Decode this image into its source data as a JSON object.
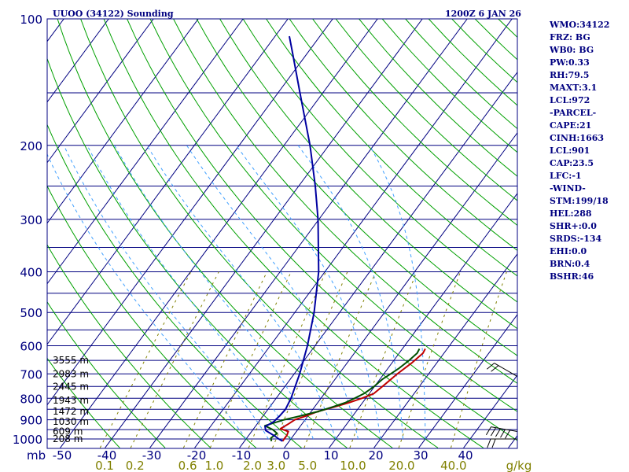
{
  "header": {
    "station": "UUOO (34122) Sounding",
    "time": "1200Z  6 JAN 26"
  },
  "stats": [
    "WMO:34122",
    "FRZ: BG",
    "WB0: BG",
    "PW:0.33",
    "RH:79.5",
    "MAXT:3.1",
    "LCL:972",
    "-PARCEL-",
    "CAPE:21",
    "CINH:1663",
    "LCL:901",
    "CAP:23.5",
    "LFC:-1",
    "-WIND-",
    "STM:199/18",
    "HEL:288",
    "SHR+:0.0",
    "SRDS:-134",
    "EHI:0.0",
    "BRN:0.4",
    "BSHR:46"
  ],
  "colors": {
    "isobar": "#000080",
    "isotherm": "#000080",
    "dry_adiabat": "#00a000",
    "moist_adiabat": "#40a0ff",
    "mixing_ratio": "#808000",
    "temperature": "#c00000",
    "dewpoint": "#005000",
    "parcel": "#0000a0"
  },
  "chart_data": {
    "type": "line",
    "title": "UUOO (34122) Sounding",
    "y_scale": "log",
    "pressure_unit": "mb",
    "mixing_ratio_unit": "g/kg",
    "pressure_ticks": [
      100,
      200,
      300,
      400,
      500,
      600,
      700,
      800,
      900,
      1000
    ],
    "temp_ticks": [
      -50,
      -40,
      -30,
      -20,
      -10,
      0,
      10,
      20,
      30,
      40
    ],
    "mixing_ratio_ticks": [
      "0.1",
      "0.2",
      "0.6",
      "1.0",
      "2.0",
      "3.0",
      "5.0",
      "10.0",
      "20.0",
      "40.0"
    ],
    "height_labels": [
      {
        "p": 650,
        "label": "3555 m"
      },
      {
        "p": 700,
        "label": "2983 m"
      },
      {
        "p": 750,
        "label": "2445 m"
      },
      {
        "p": 810,
        "label": "1943 m"
      },
      {
        "p": 860,
        "label": "1472 m"
      },
      {
        "p": 910,
        "label": "1030 m"
      },
      {
        "p": 960,
        "label": "609 m"
      },
      {
        "p": 1000,
        "label": "208 m"
      }
    ],
    "series": [
      {
        "key": "temperature",
        "points": [
          [
            1012,
            -1.5
          ],
          [
            1000,
            -1.5
          ],
          [
            980,
            -1.5
          ],
          [
            960,
            -1.8
          ],
          [
            945,
            -4.0
          ],
          [
            920,
            -3.0
          ],
          [
            900,
            -2.3
          ],
          [
            880,
            -0.3
          ],
          [
            860,
            1.5
          ],
          [
            840,
            4.2
          ],
          [
            820,
            6.9
          ],
          [
            800,
            9.1
          ],
          [
            780,
            11.0
          ],
          [
            740,
            12.0
          ],
          [
            700,
            13.0
          ],
          [
            660,
            14.4
          ],
          [
            625,
            15.3
          ],
          [
            610,
            15.1
          ]
        ]
      },
      {
        "key": "dewpoint",
        "points": [
          [
            1012,
            -4.0
          ],
          [
            995,
            -4.6
          ],
          [
            970,
            -4.0
          ],
          [
            950,
            -5.6
          ],
          [
            930,
            -8.0
          ],
          [
            900,
            -4.7
          ],
          [
            880,
            -1.5
          ],
          [
            860,
            1.6
          ],
          [
            840,
            3.9
          ],
          [
            820,
            6.1
          ],
          [
            800,
            7.5
          ],
          [
            780,
            8.8
          ],
          [
            750,
            9.9
          ],
          [
            720,
            10.6
          ],
          [
            700,
            11.5
          ],
          [
            680,
            12.4
          ],
          [
            650,
            13.4
          ],
          [
            625,
            14.0
          ],
          [
            610,
            13.8
          ]
        ]
      },
      {
        "key": "parcel",
        "points": [
          [
            1012,
            -1.5
          ],
          [
            1000,
            -2.7
          ],
          [
            985,
            -4.0
          ],
          [
            970,
            -5.5
          ],
          [
            955,
            -7.0
          ],
          [
            935,
            -7.8
          ],
          [
            910,
            -6.7
          ],
          [
            880,
            -6.3
          ],
          [
            850,
            -6.1
          ],
          [
            800,
            -6.7
          ],
          [
            700,
            -8.8
          ],
          [
            600,
            -11.7
          ],
          [
            500,
            -15.7
          ],
          [
            400,
            -21.4
          ],
          [
            300,
            -30.2
          ],
          [
            250,
            -36.3
          ],
          [
            200,
            -44.2
          ],
          [
            150,
            -55.1
          ],
          [
            120,
            -63.5
          ],
          [
            110,
            -66.8
          ]
        ]
      }
    ],
    "wind_barbs": [
      {
        "p": 710,
        "dir": 300,
        "spd": 20
      },
      {
        "p": 960,
        "dir": 280,
        "spd": 45
      },
      {
        "p": 1000,
        "dir": 270,
        "spd": 20
      }
    ]
  }
}
